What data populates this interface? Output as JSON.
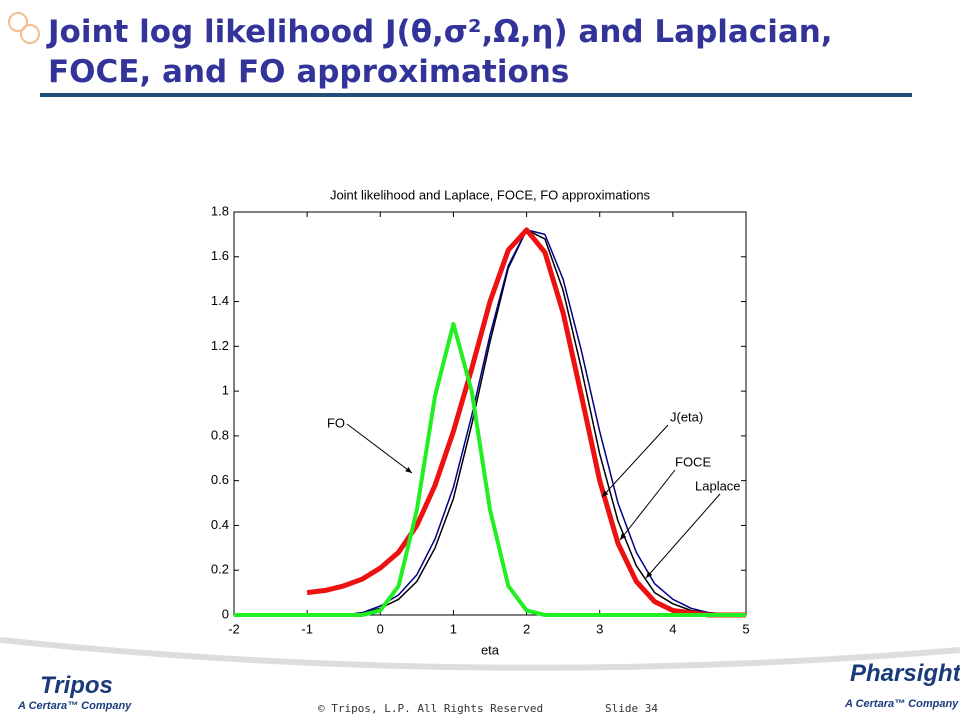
{
  "slide": {
    "title": "Joint log likelihood J(θ,σ²,Ω,η) and Laplacian, FOCE, and FO approximations",
    "footer": "© Tripos, L.P. All Rights Reserved",
    "slide_number": "Slide 34",
    "logo_left": "Tripos",
    "logo_left_tag": "A Certara™ Company",
    "logo_right": "Pharsight",
    "logo_right_tag": "A Certara™ Company"
  },
  "chart_data": {
    "type": "line",
    "title": "Joint likelihood and Laplace, FOCE, FO approximations",
    "x_label": "eta",
    "x": [
      -2,
      -1.75,
      -1.5,
      -1.25,
      -1,
      -0.75,
      -0.5,
      -0.25,
      0,
      0.25,
      0.5,
      0.75,
      1,
      1.25,
      1.5,
      1.75,
      2,
      2.25,
      2.5,
      2.75,
      3,
      3.25,
      3.5,
      3.75,
      4,
      4.25,
      4.5,
      4.75,
      5
    ],
    "series": [
      {
        "name": "J(eta)",
        "color": "#000000",
        "width": 1.5,
        "values": [
          0,
          0,
          0,
          0,
          0,
          0,
          0,
          0.01,
          0.03,
          0.07,
          0.15,
          0.3,
          0.52,
          0.85,
          1.22,
          1.55,
          1.72,
          1.68,
          1.45,
          1.1,
          0.72,
          0.42,
          0.22,
          0.1,
          0.05,
          0.02,
          0.01,
          0,
          0
        ]
      },
      {
        "name": "FOCE",
        "color": "#00008b",
        "width": 1.5,
        "values": [
          0,
          0,
          0,
          0,
          0,
          0,
          0,
          0.01,
          0.04,
          0.09,
          0.18,
          0.34,
          0.57,
          0.89,
          1.25,
          1.56,
          1.72,
          1.7,
          1.5,
          1.18,
          0.82,
          0.5,
          0.28,
          0.14,
          0.07,
          0.03,
          0.01,
          0.005,
          0
        ]
      },
      {
        "name": "Laplace",
        "color": "#ee1111",
        "width": 5,
        "values": [
          null,
          null,
          null,
          null,
          0.1,
          0.11,
          0.13,
          0.16,
          0.21,
          0.28,
          0.4,
          0.58,
          0.82,
          1.1,
          1.4,
          1.63,
          1.72,
          1.62,
          1.35,
          0.98,
          0.6,
          0.32,
          0.15,
          0.06,
          0.02,
          0.01,
          0,
          0,
          0
        ]
      },
      {
        "name": "FO",
        "color": "#22ee22",
        "width": 4,
        "values": [
          0,
          0,
          0,
          0,
          0,
          0,
          0,
          0,
          0.02,
          0.13,
          0.47,
          0.98,
          1.3,
          1.0,
          0.47,
          0.13,
          0.02,
          0,
          0,
          0,
          0,
          0,
          0,
          0,
          0,
          0,
          0,
          0,
          0
        ]
      }
    ],
    "annotations": [
      "FO",
      "J(eta)",
      "FOCE",
      "Laplace"
    ],
    "xlim": [
      -2,
      5
    ],
    "ylim": [
      0,
      1.8
    ],
    "xticks": [
      -2,
      -1,
      0,
      1,
      2,
      3,
      4,
      5
    ],
    "yticks": [
      0,
      0.2,
      0.4,
      0.6,
      0.8,
      1,
      1.2,
      1.4,
      1.6,
      1.8
    ]
  }
}
